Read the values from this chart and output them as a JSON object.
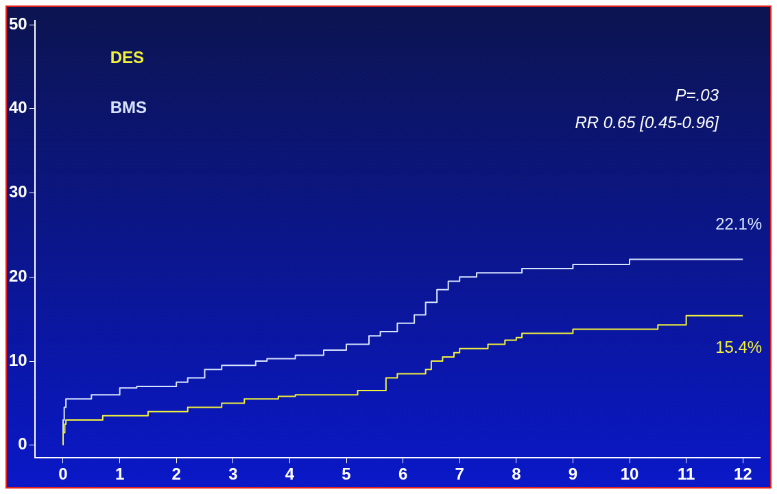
{
  "chart_data": {
    "type": "step",
    "xlim": [
      -0.5,
      12.3
    ],
    "ylim": [
      -1.5,
      50.5
    ],
    "xticks": [
      0,
      1,
      2,
      3,
      4,
      5,
      6,
      7,
      8,
      9,
      10,
      11,
      12
    ],
    "yticks": [
      0,
      10,
      20,
      30,
      40,
      50
    ],
    "grid": false,
    "legend": "top left",
    "marker": "none",
    "line_style": "solid",
    "series": [
      {
        "name": "DES",
        "color": "#f2f23a",
        "x": [
          0,
          0.03,
          0.05,
          0.7,
          1.5,
          2.2,
          2.8,
          3.2,
          3.8,
          4.1,
          5.2,
          5.7,
          5.9,
          6.4,
          6.5,
          6.7,
          6.9,
          7.0,
          7.5,
          7.8,
          8.0,
          8.1,
          9.0,
          10.5,
          11.0,
          11.6,
          12
        ],
        "values": [
          0,
          1.5,
          2.5,
          3,
          3.5,
          4,
          4.5,
          5,
          5.5,
          5.8,
          6,
          6.5,
          8,
          8.5,
          9,
          10,
          10.5,
          11,
          11.5,
          12,
          12.5,
          12.8,
          13.3,
          13.8,
          14.3,
          15.4,
          15.4
        ]
      },
      {
        "name": "BMS",
        "color": "#d8e4ff",
        "x": [
          0,
          0.02,
          0.05,
          0.5,
          1.0,
          1.3,
          2.0,
          2.2,
          2.5,
          2.8,
          3.4,
          3.6,
          4.1,
          4.6,
          5.0,
          5.4,
          5.6,
          5.9,
          6.2,
          6.4,
          6.6,
          6.8,
          7.0,
          7.3,
          8.1,
          9.0,
          10.0,
          11.4,
          12
        ],
        "values": [
          0,
          3,
          4.5,
          5.5,
          6,
          6.8,
          7,
          7.5,
          8,
          9,
          9.5,
          10,
          10.3,
          10.7,
          11.3,
          12,
          13,
          13.5,
          14.5,
          15.5,
          17,
          18.5,
          19.5,
          20,
          20.5,
          21,
          21.5,
          22.1,
          22.1
        ]
      }
    ],
    "annotations": [
      {
        "text": "22.1%",
        "x": 12,
        "y": 22.1
      },
      {
        "text": "15.4%",
        "x": 12,
        "y": 15.4
      },
      "P=.03",
      "RR 0.65 [0.45-0.96]"
    ]
  }
}
